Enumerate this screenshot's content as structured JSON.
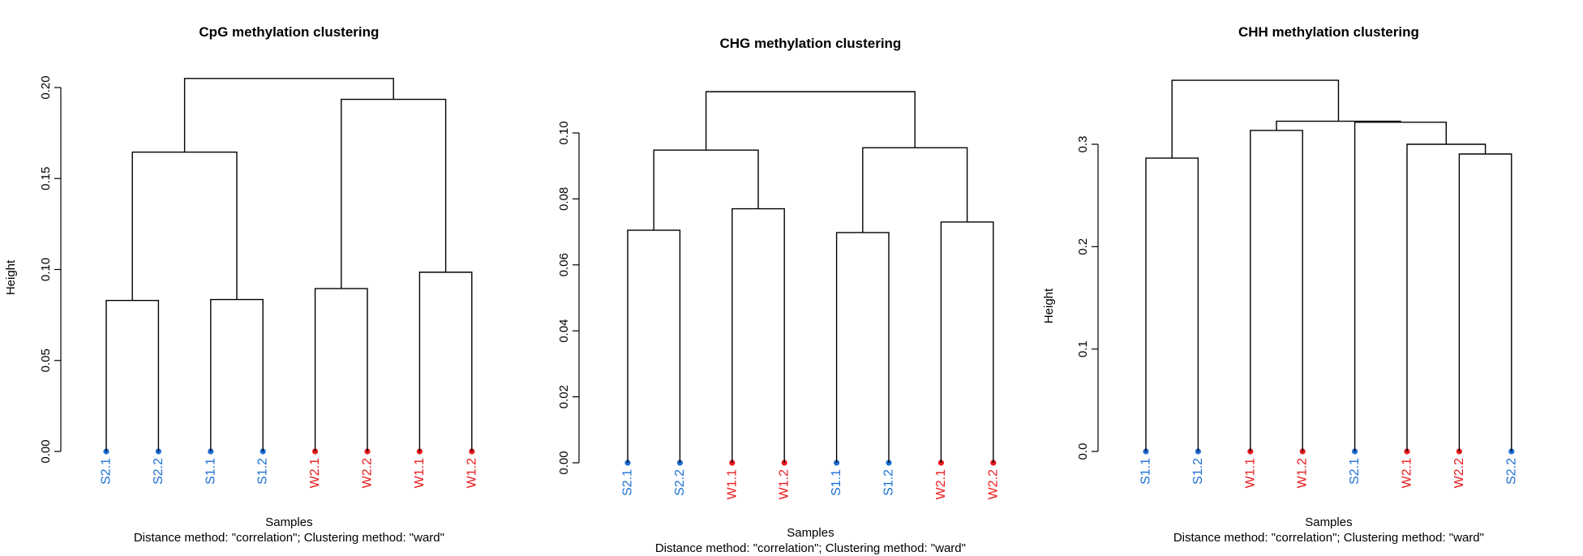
{
  "colors": {
    "S": "#1b6fd6",
    "W": "#e8191c",
    "line": "#000000"
  },
  "chart_data": [
    {
      "type": "dendrogram",
      "title": "CpG methylation clustering",
      "ylabel": "Height",
      "xlabel": "Samples",
      "sub": "Distance method: \"correlation\"; Clustering method: \"ward\"",
      "ylim": [
        0,
        0.2
      ],
      "yticks": [
        0,
        0.05,
        0.1,
        0.15,
        0.2
      ],
      "ytick_labels": [
        "0.00",
        "0.05",
        "0.10",
        "0.15",
        "0.20"
      ],
      "leaves": [
        "S2.1",
        "S2.2",
        "S1.1",
        "S1.2",
        "W2.1",
        "W2.2",
        "W1.1",
        "W1.2"
      ],
      "merges": [
        {
          "a": "S2.1",
          "b": "S2.2",
          "h": 0.083
        },
        {
          "a": "S1.1",
          "b": "S1.2",
          "h": 0.0835
        },
        {
          "a": "W2.1",
          "b": "W2.2",
          "h": 0.0895
        },
        {
          "a": "W1.1",
          "b": "W1.2",
          "h": 0.0985
        },
        {
          "a": 1,
          "b": 2,
          "h": 0.1645
        },
        {
          "a": 3,
          "b": 4,
          "h": 0.1935
        },
        {
          "a": 5,
          "b": 6,
          "h": 0.205
        }
      ]
    },
    {
      "type": "dendrogram",
      "title": "CHG methylation clustering",
      "ylabel": "",
      "xlabel": "Samples",
      "sub": "Distance method: \"correlation\"; Clustering method: \"ward\"",
      "ylim": [
        0,
        0.1
      ],
      "yticks": [
        0,
        0.02,
        0.04,
        0.06,
        0.08,
        0.1
      ],
      "ytick_labels": [
        "0.00",
        "0.02",
        "0.04",
        "0.06",
        "0.08",
        "0.10"
      ],
      "leaves": [
        "S2.1",
        "S2.2",
        "W1.1",
        "W1.2",
        "S1.1",
        "S1.2",
        "W2.1",
        "W2.2"
      ],
      "merges": [
        {
          "a": "S2.1",
          "b": "S2.2",
          "h": 0.0705
        },
        {
          "a": "W1.1",
          "b": "W1.2",
          "h": 0.077
        },
        {
          "a": "S1.1",
          "b": "S1.2",
          "h": 0.0698
        },
        {
          "a": "W2.1",
          "b": "W2.2",
          "h": 0.073
        },
        {
          "a": 1,
          "b": 2,
          "h": 0.0948
        },
        {
          "a": 3,
          "b": 4,
          "h": 0.0955
        },
        {
          "a": 5,
          "b": 6,
          "h": 0.1125
        }
      ]
    },
    {
      "type": "dendrogram",
      "title": "CHH methylation clustering",
      "ylabel": "Height",
      "xlabel": "Samples",
      "sub": "Distance method: \"correlation\"; Clustering method: \"ward\"",
      "ylim": [
        0,
        0.3
      ],
      "yticks": [
        0,
        0.1,
        0.2,
        0.3
      ],
      "ytick_labels": [
        "0.0",
        "0.1",
        "0.2",
        "0.3"
      ],
      "leaves": [
        "S1.1",
        "S1.2",
        "W1.1",
        "W1.2",
        "S2.1",
        "W2.1",
        "W2.2",
        "S2.2"
      ],
      "merges": [
        {
          "a": "S1.1",
          "b": "S1.2",
          "h": 0.2865
        },
        {
          "a": "W1.1",
          "b": "W1.2",
          "h": 0.3135
        },
        {
          "a": "W2.2",
          "b": "S2.2",
          "h": 0.2905
        },
        {
          "a": "W2.1",
          "b": 3,
          "h": 0.3
        },
        {
          "a": "S2.1",
          "b": 4,
          "h": 0.3215
        },
        {
          "a": 2,
          "b": 5,
          "h": 0.3225
        },
        {
          "a": 1,
          "b": 6,
          "h": 0.3625
        }
      ]
    }
  ]
}
